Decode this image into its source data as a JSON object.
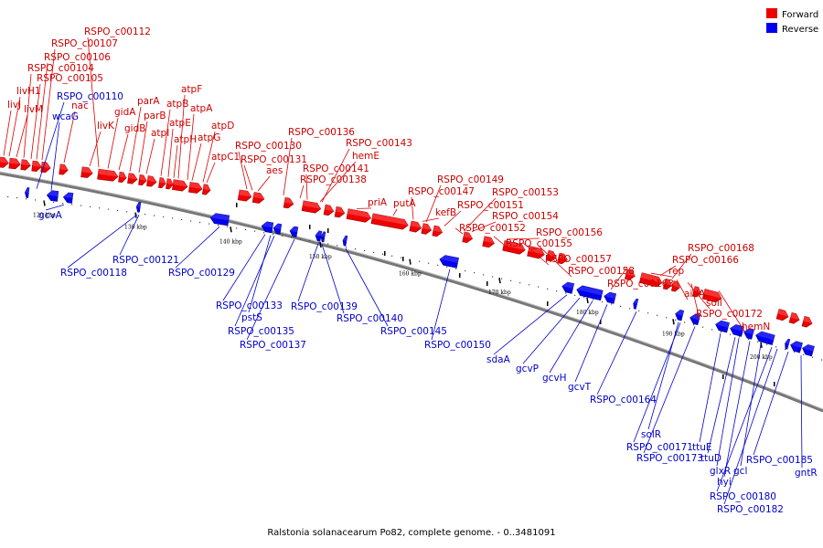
{
  "legend": {
    "forward": {
      "label": "Forward",
      "color": "#ee0000"
    },
    "reverse": {
      "label": "Reverse",
      "color": "#0000ee"
    }
  },
  "caption": "Ralstonia solanacearum Po82, complete genome. - 0..3481091",
  "ticks": [
    "120 kbp",
    "130 kbp",
    "140 kbp",
    "150 kbp",
    "160 kbp",
    "170 kbp",
    "180 kbp",
    "190 kbp",
    "200 kbp"
  ],
  "forward_genes": [
    "livJ",
    "livH1",
    "livM",
    "RSPO_c00104",
    "RSPO_c00105",
    "RSPO_c00106",
    "RSPO_c00107",
    "RSPO_c00112",
    "nac",
    "livK",
    "gidA",
    "gidB",
    "parA",
    "parB",
    "atpI",
    "atpB",
    "atpE",
    "atpF",
    "atpH",
    "atpA",
    "atpG",
    "atpD",
    "atpC1",
    "RSPO_c00130",
    "RSPO_c00131",
    "aes",
    "RSPO_c00136",
    "RSPO_c00138",
    "RSPO_c00141",
    "hemE",
    "RSPO_c00143",
    "priA",
    "putA",
    "RSPO_c00147",
    "kefB",
    "RSPO_c00149",
    "RSPO_c00151",
    "RSPO_c00152",
    "RSPO_c00153",
    "RSPO_c00154",
    "RSPO_c00155",
    "RSPO_c00156",
    "RSPO_c00157",
    "RSPO_c00158",
    "RSPO_c00163",
    "rep",
    "RSPO_c00166",
    "RSPO_c00168",
    "aidA",
    "solI",
    "RSPO_c00172",
    "hemN"
  ],
  "reverse_genes": [
    "RSPO_c00110",
    "wcaG",
    "gcvA",
    "RSPO_c00118",
    "RSPO_c00121",
    "RSPO_c00129",
    "RSPO_c00133",
    "pstS",
    "RSPO_c00135",
    "RSPO_c00137",
    "RSPO_c00139",
    "RSPO_c00140",
    "RSPO_c00145",
    "RSPO_c00150",
    "sdaA",
    "gcvP",
    "gcvH",
    "gcvT",
    "RSPO_c00164",
    "solR",
    "RSPO_c00171",
    "RSPO_c00173",
    "ttuE",
    "ttuD",
    "glxR",
    "hyi",
    "gcl",
    "RSPO_c00180",
    "RSPO_c00182",
    "RSPO_c00185",
    "gntR"
  ]
}
